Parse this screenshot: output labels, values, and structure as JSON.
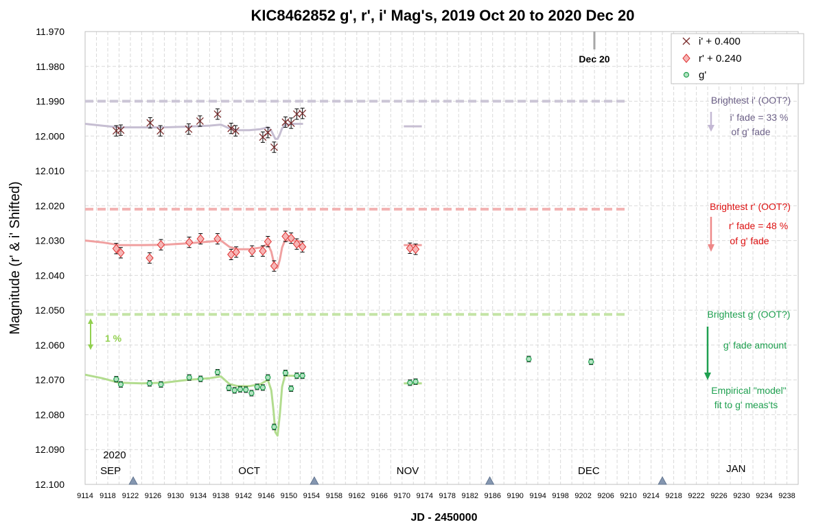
{
  "chart_data": {
    "type": "scatter",
    "title": "KIC8462852 g', r', i' Mag's, 2019 Oct 20 to 2020 Dec 20",
    "xlabel": "JD - 2450000",
    "ylabel": "Magnitude  (r' & i' Shifted)",
    "xlim": [
      9114,
      9240
    ],
    "ylim": [
      11.97,
      12.1
    ],
    "y_inverted": true,
    "x_ticks": [
      9114,
      9118,
      9122,
      9126,
      9130,
      9134,
      9138,
      9142,
      9146,
      9150,
      9154,
      9158,
      9162,
      9166,
      9170,
      9174,
      9178,
      9182,
      9186,
      9190,
      9194,
      9198,
      9202,
      9206,
      9210,
      9214,
      9218,
      9222,
      9226,
      9230,
      9234,
      9238
    ],
    "y_ticks": [
      "11.970",
      "11.980",
      "11.990",
      "12.000",
      "12.010",
      "12.020",
      "12.030",
      "12.040",
      "12.050",
      "12.060",
      "12.070",
      "12.080",
      "12.090",
      "12.100"
    ],
    "grid": true,
    "legend_position": "top-right",
    "series": [
      {
        "name": "i' + 0.400",
        "marker": "x",
        "color": "#7a2a2a",
        "points": [
          [
            9119.5,
            11.9985,
            0.0015
          ],
          [
            9120.3,
            11.9983,
            0.0015
          ],
          [
            9125.5,
            11.9962,
            0.0015
          ],
          [
            9127.3,
            11.9985,
            0.0015
          ],
          [
            9132.3,
            11.998,
            0.0015
          ],
          [
            9134.3,
            11.9957,
            0.0015
          ],
          [
            9137.4,
            11.9937,
            0.0015
          ],
          [
            9139.8,
            11.9978,
            0.0015
          ],
          [
            9140.6,
            11.9985,
            0.0015
          ],
          [
            9145.4,
            12.0003,
            0.0015
          ],
          [
            9146.3,
            11.999,
            0.0015
          ],
          [
            9147.4,
            12.0032,
            0.0015
          ],
          [
            9149.4,
            11.996,
            0.0015
          ],
          [
            9150.4,
            11.9963,
            0.0015
          ],
          [
            9151.4,
            11.9937,
            0.0015
          ],
          [
            9152.4,
            11.9935,
            0.0015
          ]
        ]
      },
      {
        "name": "r' + 0.240",
        "marker": "diamond",
        "color": "#e03030",
        "points": [
          [
            9119.5,
            12.0323,
            0.0015
          ],
          [
            9120.3,
            12.0335,
            0.0015
          ],
          [
            9125.4,
            12.035,
            0.0015
          ],
          [
            9127.4,
            12.0312,
            0.0015
          ],
          [
            9132.4,
            12.0305,
            0.0015
          ],
          [
            9134.4,
            12.0295,
            0.0015
          ],
          [
            9137.4,
            12.0295,
            0.0015
          ],
          [
            9139.8,
            12.034,
            0.0015
          ],
          [
            9140.7,
            12.0333,
            0.0015
          ],
          [
            9143.5,
            12.033,
            0.0015
          ],
          [
            9145.4,
            12.033,
            0.0015
          ],
          [
            9146.3,
            12.0303,
            0.0015
          ],
          [
            9147.4,
            12.0373,
            0.0015
          ],
          [
            9149.4,
            12.0288,
            0.0015
          ],
          [
            9150.4,
            12.0293,
            0.0015
          ],
          [
            9151.4,
            12.031,
            0.0015
          ],
          [
            9152.4,
            12.0318,
            0.0015
          ],
          [
            9171.4,
            12.0322,
            0.0015
          ],
          [
            9172.4,
            12.0325,
            0.0015
          ]
        ]
      },
      {
        "name": "g'",
        "marker": "circle",
        "color": "#22a050",
        "points": [
          [
            9119.5,
            12.0698,
            0.0008
          ],
          [
            9120.3,
            12.0713,
            0.0008
          ],
          [
            9125.4,
            12.071,
            0.0008
          ],
          [
            9127.4,
            12.0713,
            0.0008
          ],
          [
            9132.4,
            12.0693,
            0.0008
          ],
          [
            9134.4,
            12.0697,
            0.0008
          ],
          [
            9137.4,
            12.0678,
            0.0008
          ],
          [
            9139.4,
            12.0723,
            0.0008
          ],
          [
            9140.4,
            12.073,
            0.0008
          ],
          [
            9141.4,
            12.0727,
            0.0008
          ],
          [
            9142.4,
            12.0728,
            0.0008
          ],
          [
            9143.4,
            12.0738,
            0.0008
          ],
          [
            9144.4,
            12.072,
            0.0008
          ],
          [
            9145.4,
            12.0722,
            0.0008
          ],
          [
            9146.3,
            12.0693,
            0.0008
          ],
          [
            9147.4,
            12.0835,
            0.0008
          ],
          [
            9149.4,
            12.068,
            0.0008
          ],
          [
            9150.4,
            12.0725,
            0.0008
          ],
          [
            9151.4,
            12.0688,
            0.0008
          ],
          [
            9152.4,
            12.0688,
            0.0008
          ],
          [
            9171.4,
            12.0708,
            0.0008
          ],
          [
            9172.4,
            12.0705,
            0.0008
          ],
          [
            9192.4,
            12.064,
            0.0008
          ],
          [
            9203.4,
            12.0648,
            0.0008
          ]
        ]
      }
    ],
    "model_curves": [
      {
        "for": "g'",
        "color": "#b2dc8e",
        "points": [
          [
            9114,
            12.0685
          ],
          [
            9117,
            12.0695
          ],
          [
            9120,
            12.0708
          ],
          [
            9124,
            12.071
          ],
          [
            9128,
            12.0708
          ],
          [
            9132,
            12.07
          ],
          [
            9136,
            12.0695
          ],
          [
            9138,
            12.069
          ],
          [
            9139.5,
            12.0712
          ],
          [
            9141,
            12.0718
          ],
          [
            9143,
            12.0718
          ],
          [
            9145,
            12.0712
          ],
          [
            9146.3,
            12.07
          ],
          [
            9146.9,
            12.073
          ],
          [
            9147.3,
            12.079
          ],
          [
            9147.6,
            12.085
          ],
          [
            9148,
            12.086
          ],
          [
            9148.4,
            12.08
          ],
          [
            9148.8,
            12.072
          ],
          [
            9149.3,
            12.0688
          ],
          [
            9150.5,
            12.0688
          ],
          [
            9152.5,
            12.069
          ]
        ],
        "extra": [
          [
            [
              9170.3,
              12.071
            ],
            [
              9173.5,
              12.071
            ]
          ]
        ]
      },
      {
        "for": "r'",
        "color": "#f0a0a0",
        "points": [
          [
            9114,
            12.03
          ],
          [
            9117,
            12.0305
          ],
          [
            9120,
            12.0313
          ],
          [
            9124,
            12.0313
          ],
          [
            9128,
            12.0312
          ],
          [
            9132,
            12.0308
          ],
          [
            9136,
            12.0303
          ],
          [
            9138,
            12.03
          ],
          [
            9139.5,
            12.0318
          ],
          [
            9141,
            12.0325
          ],
          [
            9143,
            12.0325
          ],
          [
            9145,
            12.032
          ],
          [
            9146.3,
            12.031
          ],
          [
            9146.9,
            12.0332
          ],
          [
            9147.3,
            12.036
          ],
          [
            9147.6,
            12.0378
          ],
          [
            9148,
            12.0378
          ],
          [
            9148.4,
            12.0355
          ],
          [
            9148.8,
            12.032
          ],
          [
            9149.3,
            12.03
          ],
          [
            9150.5,
            12.03
          ],
          [
            9152.5,
            12.0303
          ]
        ],
        "extra": [
          [
            [
              9170.3,
              12.0313
            ],
            [
              9173.5,
              12.0313
            ]
          ]
        ]
      },
      {
        "for": "i'",
        "color": "#c6bed2",
        "points": [
          [
            9114,
            11.9965
          ],
          [
            9117,
            11.997
          ],
          [
            9120,
            11.9975
          ],
          [
            9124,
            11.9975
          ],
          [
            9128,
            11.9975
          ],
          [
            9132,
            11.9973
          ],
          [
            9136,
            11.997
          ],
          [
            9138,
            11.9967
          ],
          [
            9139.5,
            11.9978
          ],
          [
            9141,
            11.9983
          ],
          [
            9143,
            11.9983
          ],
          [
            9145,
            11.998
          ],
          [
            9146.3,
            11.9975
          ],
          [
            9146.9,
            11.9985
          ],
          [
            9147.3,
            11.9998
          ],
          [
            9147.6,
            12.0008
          ],
          [
            9148,
            12.0008
          ],
          [
            9148.4,
            11.9995
          ],
          [
            9148.8,
            11.9978
          ],
          [
            9149.3,
            11.9968
          ],
          [
            9150.5,
            11.9965
          ],
          [
            9152.5,
            11.9965
          ]
        ],
        "extra": [
          [
            [
              9170.3,
              11.9972
            ],
            [
              9173.5,
              11.9972
            ]
          ]
        ]
      }
    ],
    "reference_lines": [
      {
        "label": "Brightest i' (OOT?)",
        "y": 11.99,
        "x_range": [
          9114,
          9210
        ],
        "color": "#cbc5d6"
      },
      {
        "label": "Brightest r' (OOT?)",
        "y": 12.021,
        "x_range": [
          9114,
          9210
        ],
        "color": "#f2b2b2"
      },
      {
        "label": "Brightest g' (OOT?)",
        "y": 12.0512,
        "x_range": [
          9114,
          9210
        ],
        "color": "#c4e4a6"
      }
    ],
    "month_labels": [
      {
        "text": "2020",
        "x": 9119.2,
        "y": 12.0925
      },
      {
        "text": "SEP",
        "x": 9118.5,
        "y": 12.097
      },
      {
        "text": "OCT",
        "x": 9143,
        "y": 12.097
      },
      {
        "text": "NOV",
        "x": 9171,
        "y": 12.097
      },
      {
        "text": "DEC",
        "x": 9203,
        "y": 12.097
      },
      {
        "text": "JAN",
        "x": 9229,
        "y": 12.0965
      }
    ],
    "new_moon_markers_x": [
      9122.5,
      9154.5,
      9185.5,
      9216
    ],
    "annotations": {
      "dec20": {
        "label": "Dec 20",
        "x": 9203.8
      },
      "i_ratio": [
        "i' fade = 33 %",
        "of g' fade"
      ],
      "r_ratio": [
        "r' fade = 48 %",
        "of g' fade"
      ],
      "g_fade": "g' fade amount",
      "model": [
        "Empirical \"model\"",
        "fit to g' meas'ts"
      ],
      "one_percent": "1 %"
    },
    "colors": {
      "i_text": "#6b5f86",
      "r_text": "#dd1111",
      "g_text": "#1fa050",
      "pct_text": "#92d050",
      "arrow_i": "#c3b8d4",
      "arrow_r": "#ee8888",
      "arrow_g": "#1fa050",
      "arrow_pct": "#92d050",
      "moon": "#8496b0",
      "grid": "#d9d9d9"
    }
  }
}
